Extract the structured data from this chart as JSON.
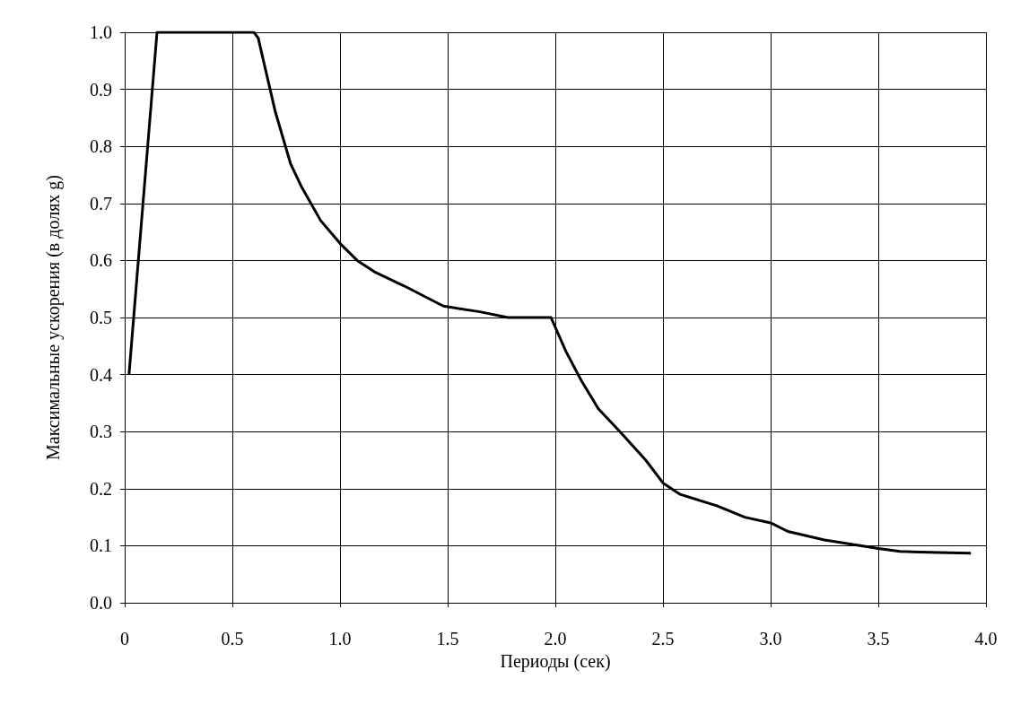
{
  "chart_data": {
    "type": "line",
    "xlabel": "Периоды (сек)",
    "ylabel": "Максимальные ускорения (в долях g)",
    "x": [
      0.02,
      0.15,
      0.6,
      0.62,
      0.7,
      0.77,
      0.82,
      0.91,
      1.0,
      1.08,
      1.16,
      1.3,
      1.48,
      1.65,
      1.78,
      1.91,
      1.98,
      2.05,
      2.12,
      2.2,
      2.3,
      2.42,
      2.5,
      2.58,
      2.75,
      2.88,
      3.0,
      3.08,
      3.25,
      3.5,
      3.6,
      3.78,
      3.93
    ],
    "series": [
      {
        "color": "#000000",
        "values": [
          0.4,
          1.0,
          1.0,
          0.99,
          0.86,
          0.77,
          0.73,
          0.67,
          0.63,
          0.6,
          0.58,
          0.555,
          0.52,
          0.51,
          0.5,
          0.5,
          0.5,
          0.44,
          0.39,
          0.34,
          0.3,
          0.25,
          0.21,
          0.19,
          0.17,
          0.15,
          0.14,
          0.125,
          0.11,
          0.095,
          0.09,
          0.088,
          0.087
        ]
      }
    ],
    "xlim": [
      0,
      4
    ],
    "ylim": [
      0,
      1
    ],
    "xticks": [
      0,
      {
        "value": 0.5,
        "label": "0.5"
      },
      {
        "value": 1,
        "label": "1.0"
      },
      {
        "value": 1.5,
        "label": "1.5"
      },
      {
        "value": 2,
        "label": "2.0"
      },
      {
        "value": 2.5,
        "label": "2.5"
      },
      {
        "value": 3,
        "label": "3.0"
      },
      {
        "value": 3.5,
        "label": "3.5"
      },
      {
        "value": 4,
        "label": "4.0"
      }
    ],
    "yticks": [
      {
        "value": 0,
        "label": "0.0"
      },
      {
        "value": 0.1,
        "label": "0.1"
      },
      {
        "value": 0.2,
        "label": "0.2"
      },
      {
        "value": 0.3,
        "label": "0.3"
      },
      {
        "value": 0.4,
        "label": "0.4"
      },
      {
        "value": 0.5,
        "label": "0.5"
      },
      {
        "value": 0.6,
        "label": "0.6"
      },
      {
        "value": 0.7,
        "label": "0.7"
      },
      {
        "value": 0.8,
        "label": "0.8"
      },
      {
        "value": 0.9,
        "label": "0.9"
      },
      {
        "value": 1,
        "label": "1.0"
      }
    ],
    "grid": true,
    "marker": "none",
    "line_style": "solid"
  }
}
